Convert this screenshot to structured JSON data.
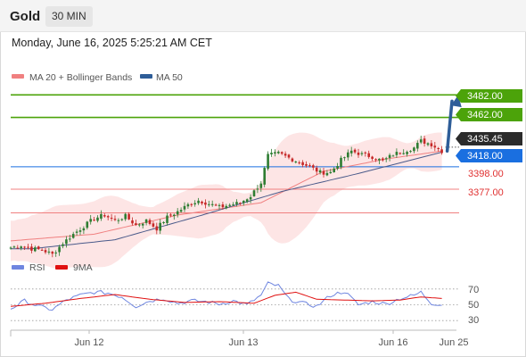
{
  "header": {
    "title": "Gold",
    "timeframe": "30 MIN"
  },
  "timestamp": "Monday, June 16, 2025 5:25:21 AM CET",
  "colors": {
    "bullish": "#2e7d32",
    "bearish": "#c62828",
    "ma20": "#f08080",
    "bollinger_fill": "#fde1e1",
    "ma50": "#4a5a8a",
    "resistance": "#4ca30a",
    "pivot": "#1a6fe0",
    "support": "#f08080",
    "current": "#2b2b2b",
    "rsi": "#6f86e0",
    "rsi_ma": "#e01010",
    "arrow": "#2e5d98"
  },
  "chart_data": [
    {
      "type": "candlestick",
      "legend": [
        {
          "name": "MA 20 + Bollinger Bands",
          "color": "#f08080"
        },
        {
          "name": "MA 50",
          "color": "#2e5d98"
        }
      ],
      "legend_position": "top-left",
      "x_ticks": [
        "Jun 12",
        "Jun 13",
        "Jun 16",
        "Jun 25"
      ],
      "ylim": [
        3340,
        3495
      ],
      "series_summary": {
        "start_close": 3345,
        "end_close": 3435.45
      },
      "close_points": [
        [
          0,
          3346
        ],
        [
          3,
          3348
        ],
        [
          6,
          3345
        ],
        [
          9,
          3344
        ],
        [
          12,
          3340
        ],
        [
          15,
          3350
        ],
        [
          18,
          3358
        ],
        [
          21,
          3365
        ],
        [
          24,
          3372
        ],
        [
          27,
          3375
        ],
        [
          30,
          3370
        ],
        [
          33,
          3374
        ],
        [
          36,
          3366
        ],
        [
          39,
          3370
        ],
        [
          42,
          3363
        ],
        [
          45,
          3373
        ],
        [
          48,
          3378
        ],
        [
          51,
          3384
        ],
        [
          54,
          3388
        ],
        [
          57,
          3385
        ],
        [
          60,
          3382
        ],
        [
          63,
          3384
        ],
        [
          66,
          3386
        ],
        [
          69,
          3392
        ],
        [
          72,
          3404
        ],
        [
          74,
          3428
        ],
        [
          77,
          3430
        ],
        [
          80,
          3426
        ],
        [
          83,
          3422
        ],
        [
          86,
          3418
        ],
        [
          89,
          3413
        ],
        [
          92,
          3413
        ],
        [
          95,
          3424
        ],
        [
          98,
          3432
        ],
        [
          101,
          3429
        ],
        [
          104,
          3427
        ],
        [
          107,
          3423
        ],
        [
          110,
          3429
        ],
        [
          113,
          3432
        ],
        [
          116,
          3435
        ],
        [
          118,
          3441
        ],
        [
          121,
          3438
        ],
        [
          124,
          3432
        ]
      ],
      "indicators": {
        "ma20_points": [
          [
            0,
            3352
          ],
          [
            24,
            3358
          ],
          [
            48,
            3375
          ],
          [
            72,
            3386
          ],
          [
            90,
            3414
          ],
          [
            108,
            3425
          ],
          [
            124,
            3432
          ]
        ],
        "ma50_points": [
          [
            6,
            3345
          ],
          [
            30,
            3353
          ],
          [
            54,
            3374
          ],
          [
            78,
            3396
          ],
          [
            100,
            3412
          ],
          [
            124,
            3431
          ]
        ],
        "bollinger": {
          "upper": 3440,
          "lower": 3355,
          "note": "band around MA 20"
        }
      },
      "levels": {
        "resistance": [
          3482.0,
          3462.0
        ],
        "pivot": 3418.0,
        "current": 3435.45,
        "support": [
          3398.0,
          3377.0
        ]
      },
      "level_labels": {
        "r2": "3482.00",
        "r1": "3462.00",
        "current": "3435.45",
        "pivot": "3418.00",
        "s1": "3398.00",
        "s2": "3377.00"
      },
      "projection": {
        "from": 3432,
        "to": 3482,
        "direction": "up"
      }
    },
    {
      "type": "line",
      "legend": [
        {
          "name": "RSI",
          "color": "#6f86e0"
        },
        {
          "name": "9MA",
          "color": "#e01010"
        }
      ],
      "legend_position": "top-left",
      "y_ticks": [
        "70",
        "50",
        "30"
      ],
      "ylim": [
        20,
        80
      ],
      "rsi_points": [
        [
          0,
          45
        ],
        [
          4,
          55
        ],
        [
          8,
          48
        ],
        [
          12,
          44
        ],
        [
          16,
          56
        ],
        [
          20,
          62
        ],
        [
          24,
          66
        ],
        [
          28,
          65
        ],
        [
          32,
          60
        ],
        [
          36,
          48
        ],
        [
          40,
          55
        ],
        [
          44,
          58
        ],
        [
          48,
          52
        ],
        [
          52,
          55
        ],
        [
          56,
          54
        ],
        [
          60,
          51
        ],
        [
          64,
          55
        ],
        [
          68,
          50
        ],
        [
          72,
          62
        ],
        [
          74,
          77
        ],
        [
          77,
          74
        ],
        [
          80,
          57
        ],
        [
          84,
          52
        ],
        [
          88,
          48
        ],
        [
          92,
          62
        ],
        [
          96,
          67
        ],
        [
          100,
          50
        ],
        [
          104,
          54
        ],
        [
          108,
          51
        ],
        [
          112,
          58
        ],
        [
          116,
          62
        ],
        [
          118,
          66
        ],
        [
          121,
          52
        ],
        [
          124,
          50
        ]
      ],
      "rsi_ma_points": [
        [
          0,
          48
        ],
        [
          10,
          52
        ],
        [
          20,
          58
        ],
        [
          30,
          63
        ],
        [
          40,
          57
        ],
        [
          50,
          53
        ],
        [
          60,
          54
        ],
        [
          70,
          52
        ],
        [
          76,
          62
        ],
        [
          82,
          66
        ],
        [
          88,
          57
        ],
        [
          96,
          56
        ],
        [
          104,
          55
        ],
        [
          112,
          56
        ],
        [
          118,
          60
        ],
        [
          124,
          58
        ]
      ]
    }
  ]
}
